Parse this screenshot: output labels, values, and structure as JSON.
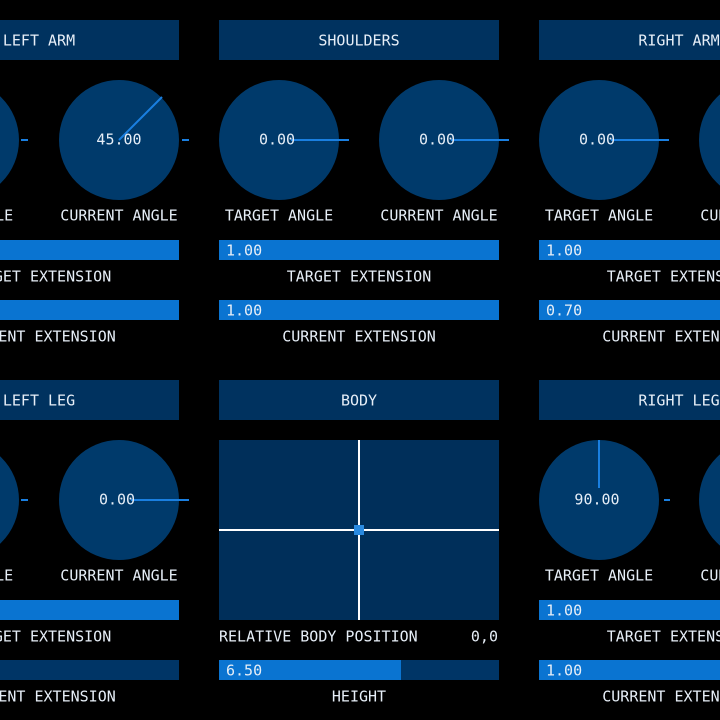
{
  "panels": [
    {
      "title": "LEFT ARM",
      "dials": [
        {
          "label": "TARGET ANGLE"
        },
        {
          "value": "45.00",
          "label": "CURRENT ANGLE"
        }
      ],
      "bars": [
        {
          "label": "TARGET EXTENSION"
        },
        {
          "label": "CURRENT EXTENSION"
        }
      ]
    },
    {
      "title": "SHOULDERS",
      "dials": [
        {
          "value": "0.00",
          "label": "TARGET ANGLE"
        },
        {
          "value": "0.00",
          "label": "CURRENT ANGLE"
        }
      ],
      "bars": [
        {
          "value": "1.00",
          "label": "TARGET EXTENSION"
        },
        {
          "value": "1.00",
          "label": "CURRENT EXTENSION"
        }
      ]
    },
    {
      "title": "RIGHT ARM",
      "dials": [
        {
          "value": "0.00",
          "label": "TARGET ANGLE"
        },
        {
          "label": "CURRENT ANGLE"
        }
      ],
      "bars": [
        {
          "value": "1.00",
          "label": "TARGET EXTENSION"
        },
        {
          "value": "0.70",
          "label": "CURRENT EXTENSION"
        }
      ]
    },
    {
      "title": "LEFT LEG",
      "dials": [
        {
          "label": "TARGET ANGLE"
        },
        {
          "value": "0.00",
          "label": "CURRENT ANGLE"
        }
      ],
      "bars": [
        {
          "label": "TARGET EXTENSION"
        },
        {
          "label": "CURRENT EXTENSION"
        }
      ]
    },
    {
      "title": "BODY",
      "position_label": "RELATIVE BODY POSITION",
      "position": "0,0",
      "bars": [
        {
          "value": "6.50",
          "label": "HEIGHT"
        }
      ]
    },
    {
      "title": "RIGHT LEG",
      "dials": [
        {
          "value": "90.00",
          "label": "TARGET ANGLE"
        },
        {
          "label": "CURRENT ANGLE"
        }
      ],
      "bars": [
        {
          "value": "1.00",
          "label": "TARGET EXTENSION"
        },
        {
          "value": "1.00",
          "label": "CURRENT EXTENSION"
        }
      ]
    }
  ]
}
